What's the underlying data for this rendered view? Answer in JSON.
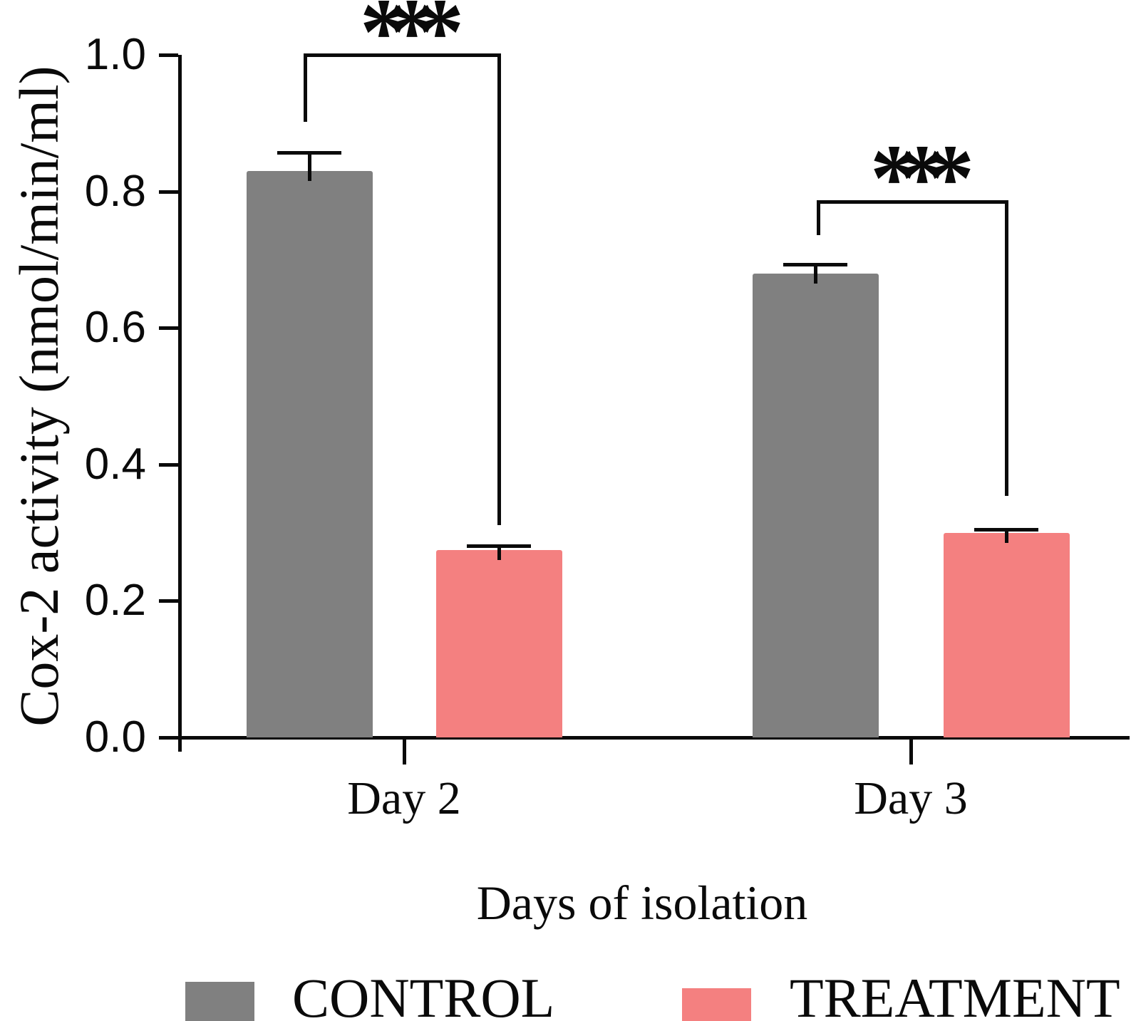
{
  "figure": {
    "y_axis_title": "Cox-2 activity (nmol/min/ml)",
    "x_axis_title": "Days of isolation"
  },
  "legend": {
    "items": [
      {
        "label": "CONTROL",
        "color": "#808080"
      },
      {
        "label": "TREATMENT",
        "color": "#F48080"
      }
    ]
  },
  "chart_data": {
    "type": "bar",
    "categories": [
      "Day 2",
      "Day 3"
    ],
    "series": [
      {
        "name": "CONTROL",
        "color": "#808080",
        "values": [
          0.83,
          0.68
        ],
        "errors": [
          0.027,
          0.013
        ]
      },
      {
        "name": "TREATMENT",
        "color": "#F48080",
        "values": [
          0.275,
          0.3
        ],
        "errors": [
          0.006,
          0.005
        ]
      }
    ],
    "title": "",
    "xlabel": "Days of isolation",
    "ylabel": "Cox-2 activity (nmol/min/ml)",
    "ylim": [
      0.0,
      1.0
    ],
    "yticks": [
      0.0,
      0.2,
      0.4,
      0.6,
      0.8,
      1.0
    ],
    "ytick_labels": [
      "0.0",
      "0.2",
      "0.4",
      "0.6",
      "0.8",
      "1.0"
    ],
    "grid": false,
    "error_bars": "upper SEM caps",
    "legend_position": "bottom",
    "annotations": [
      {
        "type": "significance",
        "label": "***",
        "category": "Day 2",
        "from_series": "CONTROL",
        "to_series": "TREATMENT"
      },
      {
        "type": "significance",
        "label": "***",
        "category": "Day 3",
        "from_series": "CONTROL",
        "to_series": "TREATMENT"
      }
    ]
  }
}
